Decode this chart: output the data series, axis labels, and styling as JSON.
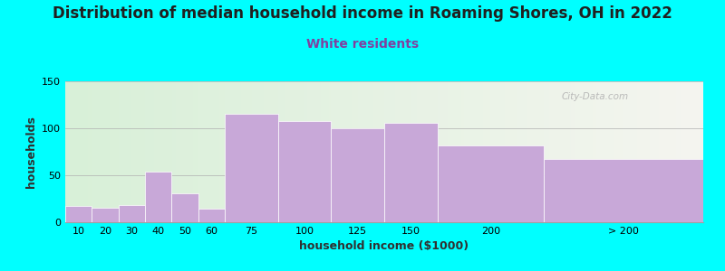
{
  "title": "Distribution of median household income in Roaming Shores, OH in 2022",
  "subtitle": "White residents",
  "xlabel": "household income ($1000)",
  "ylabel": "households",
  "background_color": "#00FFFF",
  "plot_bg_gradient_left": "#d8f0d8",
  "plot_bg_gradient_right": "#f5f5f0",
  "bar_color": "#c8a8d8",
  "title_fontsize": 12,
  "subtitle_fontsize": 10,
  "subtitle_color": "#8040a0",
  "categories": [
    "10",
    "20",
    "30",
    "40",
    "50",
    "60",
    "75",
    "100",
    "125",
    "150",
    "200",
    "> 200"
  ],
  "values": [
    17,
    15,
    18,
    54,
    31,
    14,
    115,
    108,
    100,
    106,
    82,
    67
  ],
  "ylim": [
    0,
    150
  ],
  "yticks": [
    0,
    50,
    100,
    150
  ],
  "watermark": "City-Data.com",
  "bar_left_edges": [
    0,
    1,
    2,
    3,
    4,
    5,
    6,
    8,
    10,
    12,
    14,
    18
  ],
  "bar_widths": [
    1,
    1,
    1,
    1,
    1,
    1,
    2,
    2,
    2,
    2,
    4,
    6
  ]
}
